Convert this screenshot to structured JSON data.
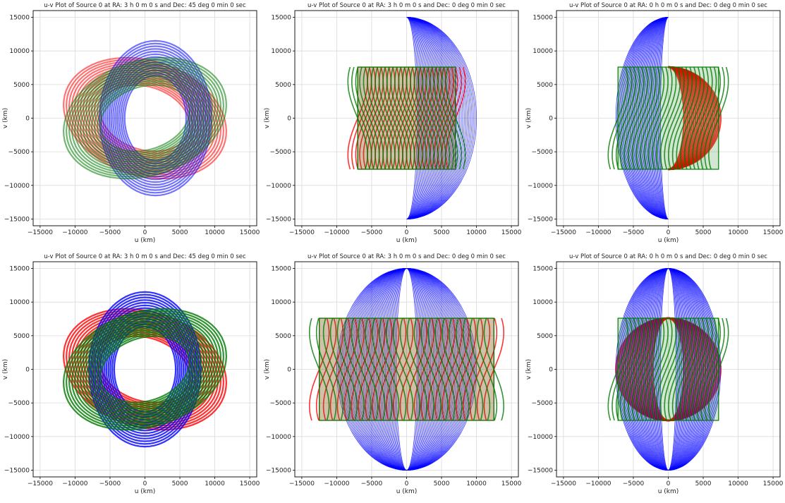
{
  "figure": {
    "background": "#ffffff"
  },
  "styles": {
    "colors": {
      "red": "#ff0000",
      "blue": "#0000ff",
      "green": "#007a00"
    },
    "grid_color": "#d9d9d9",
    "frame_color": "#000000"
  },
  "chart_data": [
    {
      "type": "scatter",
      "title": "u-v Plot of Source 0 at RA: 3 h 0 m 0 s and Dec: 45 deg 0 min 0 sec",
      "xlabel": "u (km)",
      "ylabel": "v (km)",
      "xlim": [
        -16000,
        16000
      ],
      "ylim": [
        -16000,
        16000
      ],
      "xticks": [
        -15000,
        -10000,
        -5000,
        0,
        5000,
        10000,
        15000
      ],
      "yticks": [
        -15000,
        -10000,
        -5000,
        0,
        5000,
        10000,
        15000
      ],
      "grid": true,
      "pattern": "dec45_half",
      "series": [
        {
          "color": "red",
          "tracks": 14,
          "a": 12000,
          "b": 8500,
          "cx": 0,
          "cy": 0,
          "rot": -20
        },
        {
          "color": "blue",
          "tracks": 14,
          "a": 11500,
          "b": 8000,
          "cx": 1500,
          "cy": 0,
          "rot": 90
        },
        {
          "color": "green",
          "tracks": 14,
          "a": 12000,
          "b": 8500,
          "cx": 0,
          "cy": 0,
          "rot": 20
        }
      ]
    },
    {
      "type": "scatter",
      "title": "u-v Plot of Source 0 at RA: 3 h 0 m 0 s and Dec: 0 deg 0 min 0 sec",
      "xlabel": "u (km)",
      "ylabel": "v (km)",
      "xlim": [
        -16000,
        16000
      ],
      "ylim": [
        -16000,
        16000
      ],
      "xticks": [
        -15000,
        -10000,
        -5000,
        0,
        5000,
        10000,
        15000
      ],
      "yticks": [
        -15000,
        -10000,
        -5000,
        0,
        5000,
        10000,
        15000
      ],
      "grid": true,
      "pattern": "dec0_half_ra3",
      "series": [
        {
          "color": "blue",
          "tracks": 40,
          "a": 10000,
          "b": 15000,
          "side": "right"
        },
        {
          "color": "red",
          "tracks": 26,
          "width": 7000,
          "height": 7600,
          "side": "left"
        },
        {
          "color": "green",
          "tracks": 26,
          "width": 7000,
          "height": 7600,
          "side": "left"
        }
      ]
    },
    {
      "type": "scatter",
      "title": "u-v Plot of Source 0 at RA: 0 h 0 m 0 s and Dec: 0 deg 0 min 0 sec",
      "xlabel": "u (km)",
      "ylabel": "v (km)",
      "xlim": [
        -16000,
        16000
      ],
      "ylim": [
        -16000,
        16000
      ],
      "xticks": [
        -15000,
        -10000,
        -5000,
        0,
        5000,
        10000,
        15000
      ],
      "yticks": [
        -15000,
        -10000,
        -5000,
        0,
        5000,
        10000,
        15000
      ],
      "grid": true,
      "pattern": "dec0_half_ra0",
      "series": [
        {
          "color": "blue",
          "tracks": 40,
          "a": 7500,
          "b": 15000,
          "side": "left"
        },
        {
          "color": "red",
          "tracks": 20,
          "a": 7500,
          "b": 7600,
          "side": "right"
        },
        {
          "color": "green",
          "tracks": 26,
          "width": 7200,
          "height": 7600,
          "side": "center"
        }
      ]
    },
    {
      "type": "scatter",
      "title": "u-v Plot of Source 0 at RA: 3 h 0 m 0 s and Dec: 45 deg 0 min 0 sec",
      "xlabel": "u (km)",
      "ylabel": "v (km)",
      "xlim": [
        -16000,
        16000
      ],
      "ylim": [
        -16000,
        16000
      ],
      "xticks": [
        -15000,
        -10000,
        -5000,
        0,
        5000,
        10000,
        15000
      ],
      "yticks": [
        -15000,
        -10000,
        -5000,
        0,
        5000,
        10000,
        15000
      ],
      "grid": true,
      "pattern": "dec45_full",
      "series": [
        {
          "color": "red",
          "tracks": 14,
          "a": 12000,
          "b": 8500,
          "cx": 0,
          "cy": 0,
          "rot": -20
        },
        {
          "color": "blue",
          "tracks": 14,
          "a": 11500,
          "b": 8000,
          "cx": 0,
          "cy": 0,
          "rot": 90
        },
        {
          "color": "green",
          "tracks": 14,
          "a": 12000,
          "b": 8500,
          "cx": 0,
          "cy": 0,
          "rot": 20
        }
      ]
    },
    {
      "type": "scatter",
      "title": "u-v Plot of Source 0 at RA: 3 h 0 m 0 s and Dec: 0 deg 0 min 0 sec",
      "xlabel": "u (km)",
      "ylabel": "v (km)",
      "xlim": [
        -16000,
        16000
      ],
      "ylim": [
        -16000,
        16000
      ],
      "xticks": [
        -15000,
        -10000,
        -5000,
        0,
        5000,
        10000,
        15000
      ],
      "yticks": [
        -15000,
        -10000,
        -5000,
        0,
        5000,
        10000,
        15000
      ],
      "grid": true,
      "pattern": "dec0_full_ra3",
      "series": [
        {
          "color": "blue",
          "tracks": 40,
          "a": 10000,
          "b": 15000,
          "side": "both"
        },
        {
          "color": "red",
          "tracks": 26,
          "width": 12500,
          "height": 7600,
          "side": "both"
        },
        {
          "color": "green",
          "tracks": 26,
          "width": 12500,
          "height": 7600,
          "side": "both"
        }
      ]
    },
    {
      "type": "scatter",
      "title": "u-v Plot of Source 0 at RA: 0 h 0 m 0 s and Dec: 0 deg 0 min 0 sec",
      "xlabel": "u (km)",
      "ylabel": "v (km)",
      "xlim": [
        -16000,
        16000
      ],
      "ylim": [
        -16000,
        16000
      ],
      "xticks": [
        -15000,
        -10000,
        -5000,
        0,
        5000,
        10000,
        15000
      ],
      "yticks": [
        -15000,
        -10000,
        -5000,
        0,
        5000,
        10000,
        15000
      ],
      "grid": true,
      "pattern": "dec0_full_ra0",
      "series": [
        {
          "color": "red",
          "tracks": 20,
          "a": 7500,
          "b": 7600,
          "side": "both"
        },
        {
          "color": "blue",
          "tracks": 40,
          "a": 7500,
          "b": 15000,
          "side": "both"
        },
        {
          "color": "green",
          "tracks": 26,
          "width": 7200,
          "height": 7600,
          "side": "center"
        }
      ]
    }
  ]
}
